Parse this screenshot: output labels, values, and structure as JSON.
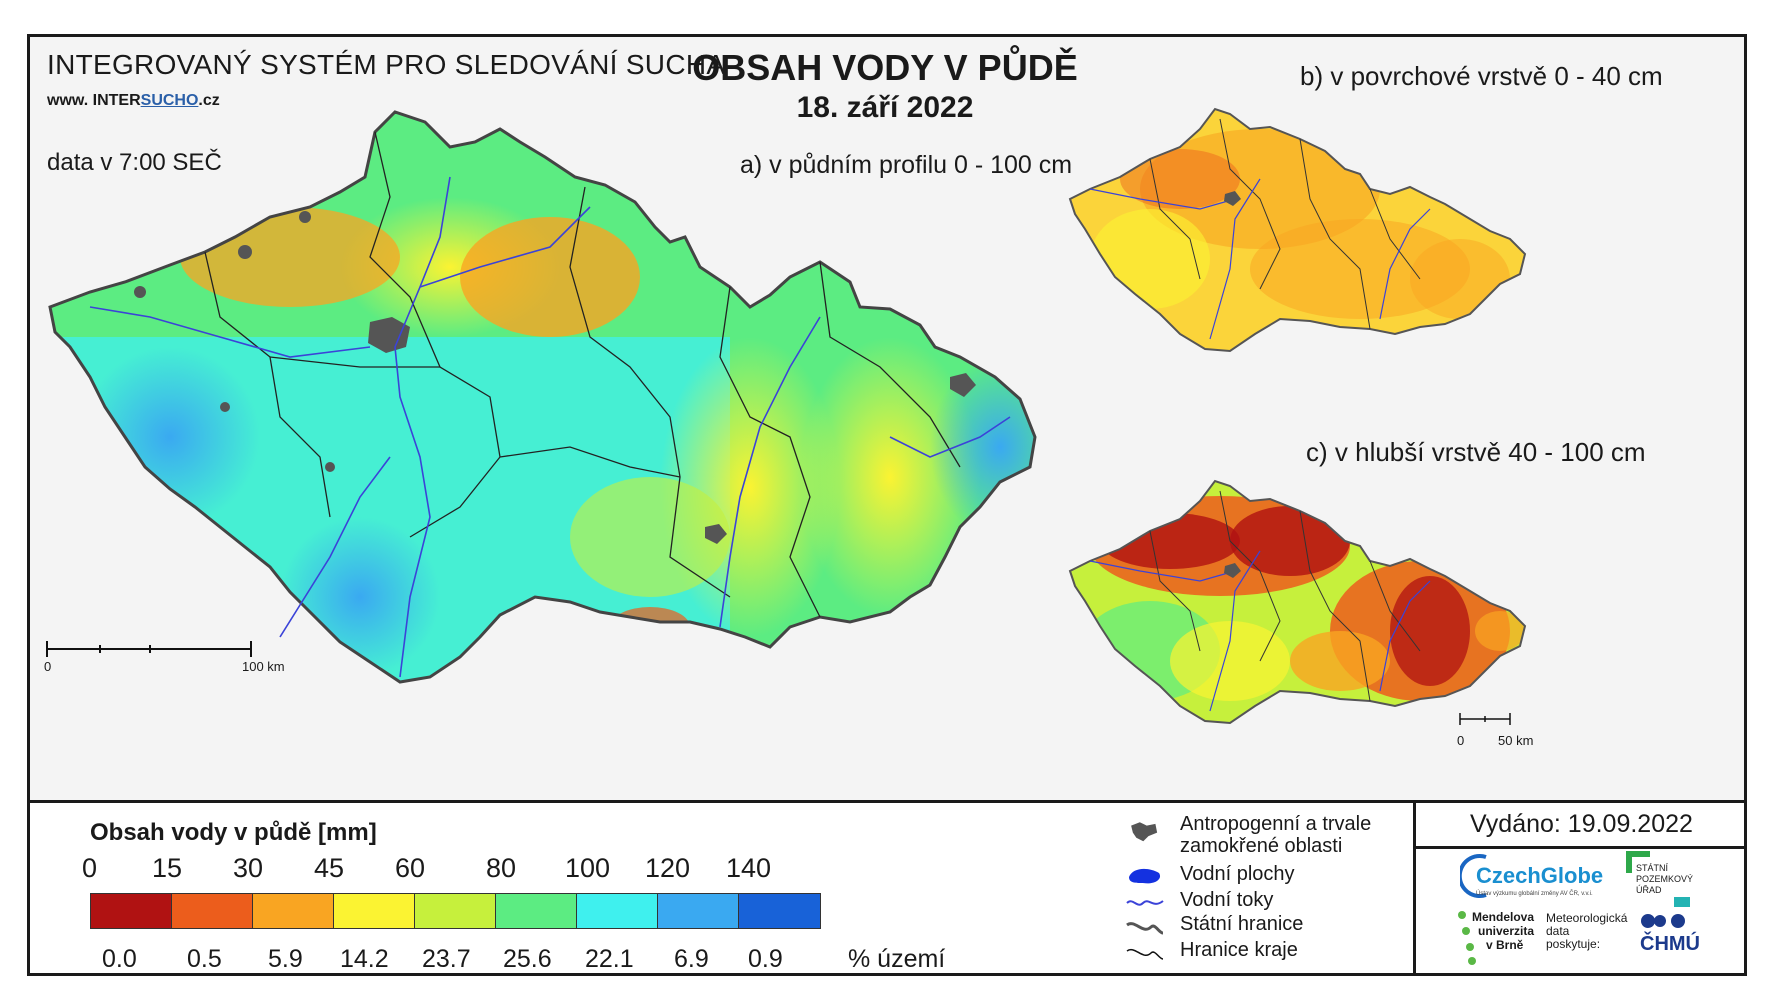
{
  "header": {
    "system_title": "INTEGROVANÝ SYSTÉM PRO SLEDOVÁNÍ SUCHA",
    "website_prefix": "www. INTER",
    "website_underline": "SUCHO",
    "website_suffix": ".cz",
    "data_time": "data v 7:00 SEČ",
    "main_title": "OBSAH VODY V PŮDĚ",
    "main_date": "18. září 2022"
  },
  "maps": {
    "a_title": "a) v půdním profilu 0 - 100 cm",
    "b_title": "b) v povrchové vrstvě 0 - 40 cm",
    "c_title": "c) v hlubší vrstvě 40 - 100 cm",
    "scale_main": {
      "start": "0",
      "end": "100 km"
    },
    "scale_small": {
      "start": "0",
      "end": "50 km"
    }
  },
  "legend": {
    "title": "Obsah vody v půdě  [mm]",
    "thresholds": [
      "0",
      "15",
      "30",
      "45",
      "60",
      "80",
      "100",
      "120",
      "140"
    ],
    "colors": [
      "#b01212",
      "#ec5d1c",
      "#f9a522",
      "#fbf332",
      "#c6f03c",
      "#5cec82",
      "#3ff0ee",
      "#3aa9f1",
      "#1862d8"
    ],
    "percentages": [
      "0.0",
      "0.5",
      "5.9",
      "14.2",
      "23.7",
      "25.6",
      "22.1",
      "6.9",
      "0.9"
    ],
    "percent_unit": "% území"
  },
  "symbols": {
    "anthropogenic_1": "Antropogenní a trvale",
    "anthropogenic_2": "zamokřené oblasti",
    "water_bodies": "Vodní plochy",
    "streams": "Vodní toky",
    "state_border": "Státní hranice",
    "region_border": "Hranice kraje"
  },
  "footer": {
    "issued": "Vydáno: 19.09.2022",
    "logo_czechglobe": "CzechGlobe",
    "logo_czechglobe_sub": "Ústav výzkumu globální změny AV ČR, v.v.i.",
    "logo_spu_1": "STÁTNÍ",
    "logo_spu_2": "POZEMKOVÝ",
    "logo_spu_3": "ÚŘAD",
    "logo_mendel_1": "Mendelova",
    "logo_mendel_2": "univerzita",
    "logo_mendel_3": "v Brně",
    "meteo_1": "Meteorologická",
    "meteo_2": "data",
    "meteo_3": "poskytuje:",
    "logo_chmu": "ČHMÚ"
  }
}
